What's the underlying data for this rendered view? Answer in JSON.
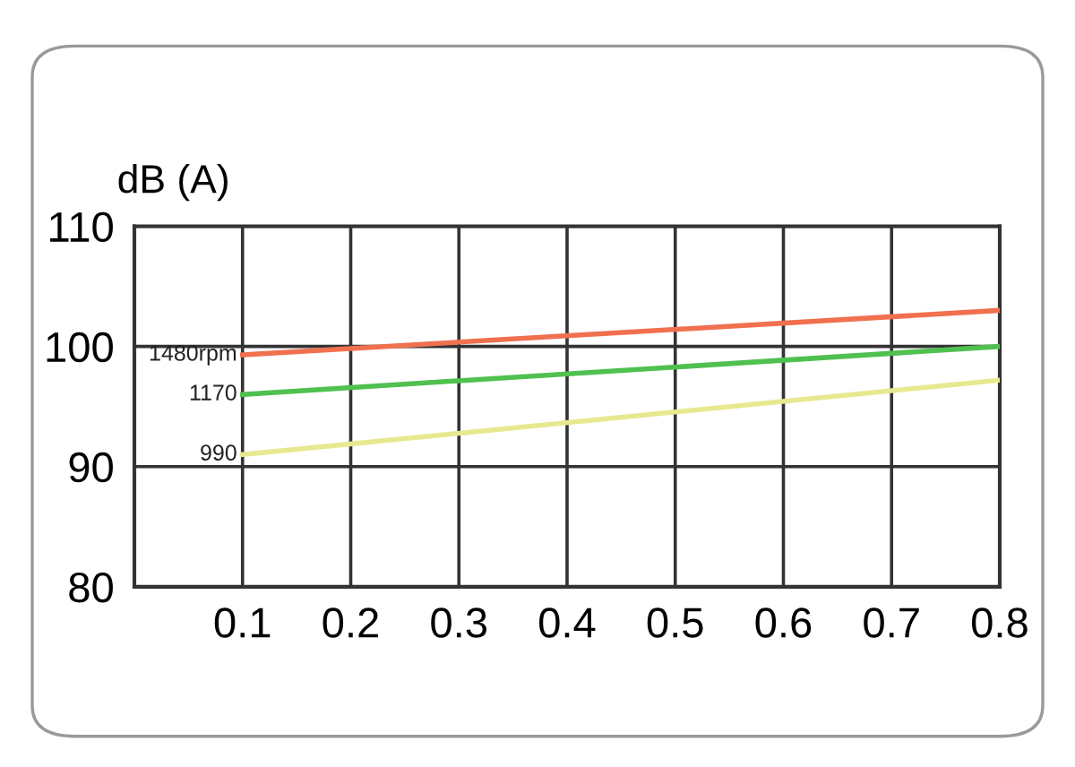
{
  "chart_data": {
    "type": "line",
    "ylabel": "dB (A)",
    "x": [
      0.1,
      0.8
    ],
    "series": [
      {
        "name": "1480rpm",
        "color": "#f07050",
        "values": [
          99.3,
          103
        ]
      },
      {
        "name": "1170",
        "color": "#50c050",
        "values": [
          96,
          100
        ]
      },
      {
        "name": "990",
        "color": "#e8e890",
        "values": [
          91,
          97.2
        ]
      }
    ],
    "xlim": [
      0,
      0.8
    ],
    "ylim": [
      80,
      110
    ],
    "xticks": [
      {
        "value": 0,
        "label": null
      },
      0.1,
      0.2,
      0.3,
      0.4,
      0.5,
      0.6,
      0.7,
      0.8
    ],
    "yticks": [
      80,
      90,
      100,
      110
    ],
    "grid": true,
    "legend": false,
    "marker": "none",
    "line_style": "solid"
  }
}
